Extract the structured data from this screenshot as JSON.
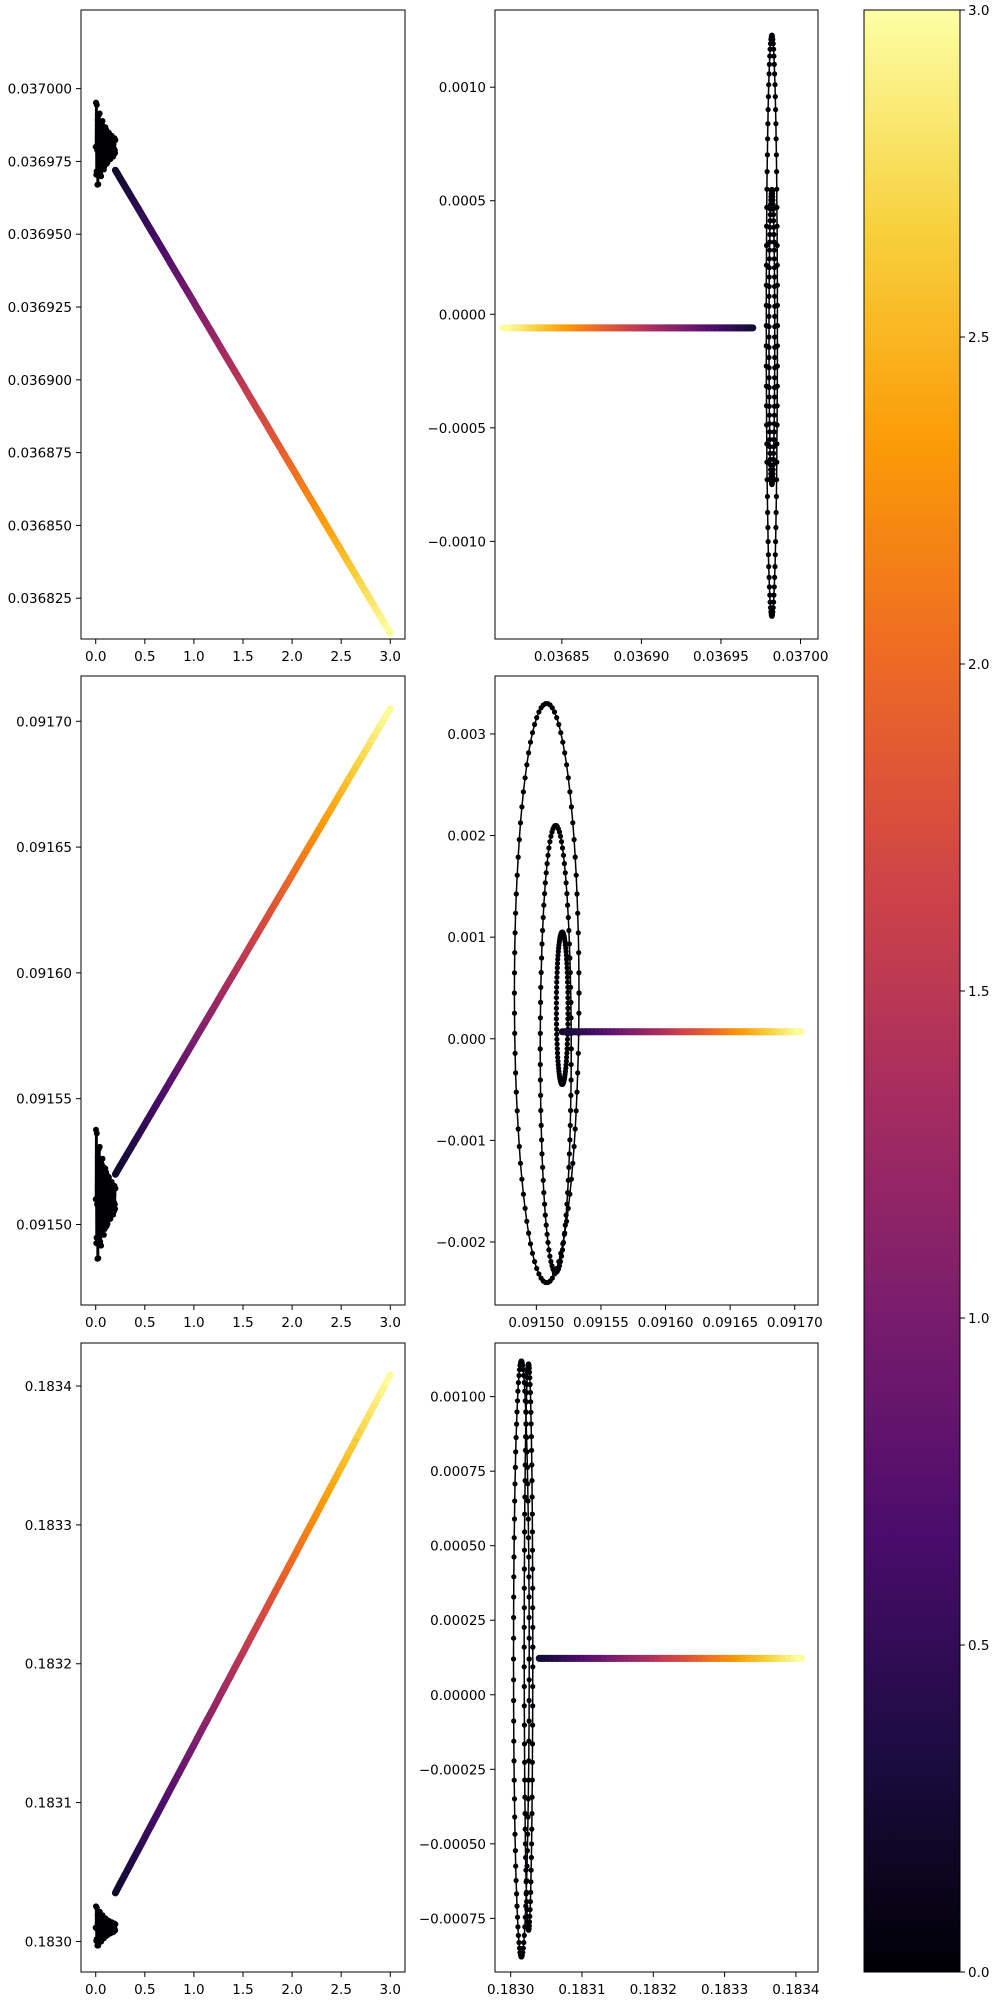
{
  "chart_data": [
    {
      "type": "line",
      "title": "",
      "xlabel": "",
      "ylabel": "",
      "xlim": [
        -0.15,
        3.15
      ],
      "ylim": [
        0.036811,
        0.037027
      ],
      "xticks": [
        0.0,
        0.5,
        1.0,
        1.5,
        2.0,
        2.5,
        3.0
      ],
      "xtick_labels": [
        "0.0",
        "0.5",
        "1.0",
        "1.5",
        "2.0",
        "2.5",
        "3.0"
      ],
      "yticks": [
        0.036825,
        0.03685,
        0.036875,
        0.0369,
        0.036925,
        0.03695,
        0.036975,
        0.037
      ],
      "ytick_labels": [
        "0.036825",
        "0.036850",
        "0.036875",
        "0.036900",
        "0.036925",
        "0.036950",
        "0.036975",
        "0.037000"
      ],
      "grid": false,
      "color_by": "time",
      "transient": {
        "x_end": 0.2,
        "y_center": 0.03698,
        "y_min": 0.036972,
        "y_max": 0.037005
      },
      "series": [
        {
          "x": [
            0.2,
            3.0
          ],
          "y": [
            0.036972,
            0.036813
          ]
        }
      ]
    },
    {
      "type": "line",
      "title": "",
      "xlabel": "",
      "ylabel": "",
      "xlim": [
        0.036808,
        0.037011
      ],
      "ylim": [
        -0.00143,
        0.00134
      ],
      "xticks": [
        0.03685,
        0.0369,
        0.03695,
        0.037
      ],
      "xtick_labels": [
        "0.03685",
        "0.03690",
        "0.03695",
        "0.03700"
      ],
      "yticks": [
        -0.001,
        -0.0005,
        0.0,
        0.0005,
        0.001
      ],
      "ytick_labels": [
        "−0.0010",
        "−0.0005",
        "0.0000",
        "0.0005",
        "0.0010"
      ],
      "grid": false,
      "color_by": "time",
      "orbits": [
        {
          "cx": 0.036982,
          "cy": -5e-05,
          "rx": 3.5e-06,
          "ry": 0.00128
        },
        {
          "cx": 0.036982,
          "cy": -0.0001,
          "rx": 1.8e-06,
          "ry": 0.00065
        }
      ],
      "series": [
        {
          "x": [
            0.03697,
            0.036813
          ],
          "y": [
            -6e-05,
            -6e-05
          ]
        }
      ]
    },
    {
      "type": "line",
      "title": "",
      "xlabel": "",
      "ylabel": "",
      "xlim": [
        -0.15,
        3.15
      ],
      "ylim": [
        0.091468,
        0.091718
      ],
      "xticks": [
        0.0,
        0.5,
        1.0,
        1.5,
        2.0,
        2.5,
        3.0
      ],
      "xtick_labels": [
        "0.0",
        "0.5",
        "1.0",
        "1.5",
        "2.0",
        "2.5",
        "3.0"
      ],
      "yticks": [
        0.0915,
        0.09155,
        0.0916,
        0.09165,
        0.0917
      ],
      "ytick_labels": [
        "0.09150",
        "0.09155",
        "0.09160",
        "0.09165",
        "0.09170"
      ],
      "grid": false,
      "color_by": "time",
      "transient": {
        "x_end": 0.2,
        "y_center": 0.09151,
        "y_min": 0.09148,
        "y_max": 0.09154
      },
      "series": [
        {
          "x": [
            0.2,
            3.0
          ],
          "y": [
            0.09152,
            0.091705
          ]
        }
      ]
    },
    {
      "type": "line",
      "title": "",
      "xlabel": "",
      "ylabel": "",
      "xlim": [
        0.091468,
        0.091718
      ],
      "ylim": [
        -0.00262,
        0.00357
      ],
      "xticks": [
        0.0915,
        0.09155,
        0.0916,
        0.09165,
        0.0917
      ],
      "xtick_labels": [
        "0.09150",
        "0.09155",
        "0.09160",
        "0.09165",
        "0.09170"
      ],
      "yticks": [
        -0.002,
        -0.001,
        0.0,
        0.001,
        0.002,
        0.003
      ],
      "ytick_labels": [
        "−0.002",
        "−0.001",
        "0.000",
        "0.001",
        "0.002",
        "0.003"
      ],
      "grid": false,
      "color_by": "time",
      "orbits": [
        {
          "cx": 0.091508,
          "cy": 0.00045,
          "rx": 2.5e-05,
          "ry": 0.00285
        },
        {
          "cx": 0.091515,
          "cy": -0.0001,
          "rx": 1.2e-05,
          "ry": 0.0022
        },
        {
          "cx": 0.09152,
          "cy": 0.0003,
          "rx": 4.5e-06,
          "ry": 0.00075
        }
      ],
      "series": [
        {
          "x": [
            0.09152,
            0.091705
          ],
          "y": [
            7e-05,
            7e-05
          ]
        }
      ]
    },
    {
      "type": "line",
      "title": "",
      "xlabel": "",
      "ylabel": "",
      "xlim": [
        -0.15,
        3.15
      ],
      "ylim": [
        0.182978,
        0.183431
      ],
      "xticks": [
        0.0,
        0.5,
        1.0,
        1.5,
        2.0,
        2.5,
        3.0
      ],
      "xtick_labels": [
        "0.0",
        "0.5",
        "1.0",
        "1.5",
        "2.0",
        "2.5",
        "3.0"
      ],
      "yticks": [
        0.183,
        0.1831,
        0.1832,
        0.1833,
        0.1834
      ],
      "ytick_labels": [
        "0.1830",
        "0.1831",
        "0.1832",
        "0.1833",
        "0.1834"
      ],
      "grid": false,
      "color_by": "time",
      "transient": {
        "x_end": 0.2,
        "y_center": 0.18301,
        "y_min": 0.182997,
        "y_max": 0.18303
      },
      "series": [
        {
          "x": [
            0.2,
            3.0
          ],
          "y": [
            0.183035,
            0.183408
          ]
        }
      ]
    },
    {
      "type": "line",
      "title": "",
      "xlabel": "",
      "ylabel": "",
      "xlim": [
        0.182978,
        0.183431
      ],
      "ylim": [
        -0.00093,
        0.00118
      ],
      "xticks": [
        0.183,
        0.1831,
        0.1832,
        0.1833,
        0.1834
      ],
      "xtick_labels": [
        "0.1830",
        "0.1831",
        "0.1832",
        "0.1833",
        "0.1834"
      ],
      "yticks": [
        -0.00075,
        -0.0005,
        -0.00025,
        0.0,
        0.00025,
        0.0005,
        0.00075,
        0.001
      ],
      "ytick_labels": [
        "−0.00075",
        "−0.00050",
        "−0.00025",
        "0.00000",
        "0.00025",
        "0.00050",
        "0.00075",
        "0.00100"
      ],
      "grid": false,
      "color_by": "time",
      "orbits": [
        {
          "cx": 0.183015,
          "cy": 0.00012,
          "rx": 1.1e-05,
          "ry": 0.001
        },
        {
          "cx": 0.183025,
          "cy": 0.00016,
          "rx": 6e-06,
          "ry": 0.00095
        }
      ],
      "series": [
        {
          "x": [
            0.18304,
            0.183408
          ],
          "y": [
            0.000122,
            0.000122
          ]
        }
      ]
    }
  ],
  "colorbar": {
    "label": "",
    "colormap": "inferno",
    "range": [
      0.0,
      3.0
    ],
    "ticks": [
      0.0,
      0.5,
      1.0,
      1.5,
      2.0,
      2.5,
      3.0
    ],
    "tick_labels": [
      "0.0",
      "0.5",
      "1.0",
      "1.5",
      "2.0",
      "2.5",
      "3.0"
    ],
    "colors": [
      "#000004",
      "#1b0c41",
      "#4a0c6b",
      "#781c6d",
      "#a52c60",
      "#cf4446",
      "#ed6925",
      "#fb9b06",
      "#f7d13d",
      "#fcffa4"
    ]
  }
}
